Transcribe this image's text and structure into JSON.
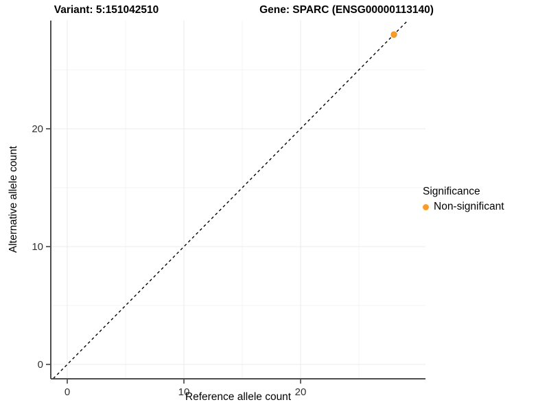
{
  "chart_data": {
    "type": "scatter",
    "title_left": "Variant: 5:151042510",
    "title_right": "Gene: SPARC (ENSG00000113140)",
    "xlabel": "Reference allele count",
    "ylabel": "Alternative allele count",
    "x_ticks": [
      0,
      10,
      20
    ],
    "y_ticks": [
      0,
      10,
      20
    ],
    "x_minor": [
      5,
      15,
      25
    ],
    "y_minor": [
      5,
      15,
      25
    ],
    "xlim": [
      -1.4,
      30.7
    ],
    "ylim": [
      -1.2,
      29.2
    ],
    "grid": "major+minor",
    "points": [
      {
        "x": 28,
        "y": 28,
        "series": "Non-significant"
      }
    ],
    "identity_line": {
      "style": "dashed",
      "from": [
        -1.2,
        -1.2
      ],
      "to": [
        29.2,
        29.2
      ]
    },
    "legend": {
      "title": "Significance",
      "position": "right",
      "entries": [
        {
          "label": "Non-significant",
          "color": "#FC9C27"
        }
      ]
    },
    "colors": {
      "point_fill": "#FC9C27",
      "point_stroke": "#EF8C20",
      "axis_line": "#4d4d4d",
      "tick": "#333333",
      "tick_label": "#303030",
      "grid_major": "#ebebeb",
      "grid_minor": "#f4f4f4",
      "identity_line": "#000000",
      "background": "#ffffff"
    }
  }
}
